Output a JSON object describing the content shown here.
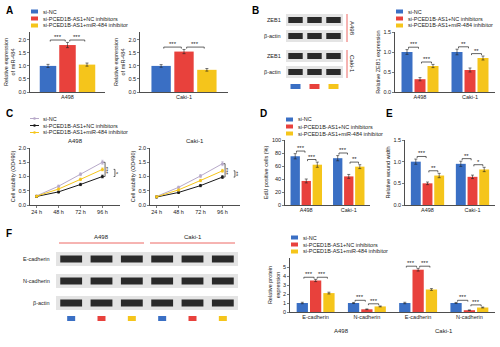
{
  "chart_data": [
    {
      "panel": "A",
      "type": "bar",
      "y_label": "Relative expression\nof miR-484",
      "categories": [
        "A498"
      ],
      "series": [
        {
          "name": "si-NC",
          "color": "#3a6fc4",
          "values": [
            1.0
          ],
          "errors": [
            0.06
          ]
        },
        {
          "name": "si-PCED1B-AS1+NC inhibitors",
          "color": "#e8413c",
          "values": [
            1.8
          ],
          "errors": [
            0.1
          ]
        },
        {
          "name": "si-PCED1B-AS1+miR-484 inhibitor",
          "color": "#f5c51b",
          "values": [
            1.05
          ],
          "errors": [
            0.06
          ]
        }
      ],
      "ylim": [
        0,
        2.3
      ],
      "yticks": [
        {
          "value": 0,
          "label": "0.0"
        },
        0.5,
        {
          "value": 1,
          "label": "1.0"
        },
        1.5,
        {
          "value": 2,
          "label": "2.0"
        }
      ],
      "legend": "top left",
      "significance": [
        {
          "category": "A498",
          "between": [
            "si-NC",
            "si-PCED1B-AS1+NC inhibitors"
          ],
          "text": "***"
        },
        {
          "category": "A498",
          "between": [
            "si-PCED1B-AS1+NC inhibitors",
            "si-PCED1B-AS1+miR-484 inhibitor"
          ],
          "text": "***"
        }
      ]
    },
    {
      "type": "bar",
      "y_label": "Relative expression\nof miR-484",
      "categories": [
        "Caki-1"
      ],
      "series": [
        {
          "name": "si-NC",
          "color": "#3a6fc4",
          "values": [
            1.0
          ],
          "errors": [
            0.05
          ]
        },
        {
          "name": "si-PCED1B-AS1+NC inhibitors",
          "color": "#e8413c",
          "values": [
            1.55
          ],
          "errors": [
            0.08
          ]
        },
        {
          "name": "si-PCED1B-AS1+miR-484 inhibitor",
          "color": "#f5c51b",
          "values": [
            0.85
          ],
          "errors": [
            0.05
          ]
        }
      ],
      "ylim": [
        0,
        2.3
      ],
      "yticks": [
        {
          "value": 0,
          "label": "0.0"
        },
        0.5,
        {
          "value": 1,
          "label": "1.0"
        },
        1.5,
        {
          "value": 2,
          "label": "2.0"
        }
      ],
      "significance": [
        {
          "category": "Caki-1",
          "between": [
            "si-NC",
            "si-PCED1B-AS1+NC inhibitors"
          ],
          "text": "***"
        },
        {
          "category": "Caki-1",
          "between": [
            "si-PCED1B-AS1+NC inhibitors",
            "si-PCED1B-AS1+miR-484 inhibitor"
          ],
          "text": "***"
        }
      ]
    },
    {
      "type": "bar",
      "y_label": "Relative ZEB1 expression",
      "categories": [
        "A498",
        "Caki-1"
      ],
      "series": [
        {
          "name": "si-NC",
          "color": "#3a6fc4",
          "values": [
            1.0,
            1.0
          ],
          "errors": [
            0.06,
            0.07
          ]
        },
        {
          "name": "si-PCED1B-AS1+NC inhibitors",
          "color": "#e8413c",
          "values": [
            0.32,
            0.55
          ],
          "errors": [
            0.04,
            0.05
          ]
        },
        {
          "name": "si-PCED1B-AS1+miR-484 inhibitor",
          "color": "#f5c51b",
          "values": [
            0.65,
            0.85
          ],
          "errors": [
            0.04,
            0.05
          ]
        }
      ],
      "ylim": [
        0,
        1.5
      ],
      "yticks": [
        {
          "value": 0,
          "label": "0.0"
        },
        0.5,
        {
          "value": 1,
          "label": "1.0"
        },
        1.5
      ],
      "legend": "top right",
      "significance": [
        {
          "category": "A498",
          "between": [
            "si-NC",
            "si-PCED1B-AS1+NC inhibitors"
          ],
          "text": "***"
        },
        {
          "category": "A498",
          "between": [
            "si-PCED1B-AS1+NC inhibitors",
            "si-PCED1B-AS1+miR-484 inhibitor"
          ],
          "text": "***"
        },
        {
          "category": "Caki-1",
          "between": [
            "si-NC",
            "si-PCED1B-AS1+NC inhibitors"
          ],
          "text": "**"
        },
        {
          "category": "Caki-1",
          "between": [
            "si-PCED1B-AS1+NC inhibitors",
            "si-PCED1B-AS1+miR-484 inhibitor"
          ],
          "text": "**"
        }
      ]
    },
    {
      "panel": "C",
      "type": "line",
      "title": "A498",
      "y_label": "Cell viability (OD490)",
      "categories": [
        "24 h",
        "48 h",
        "72 h",
        "96 h"
      ],
      "marker": "circle",
      "series": [
        {
          "name": "si-NC",
          "color": "#b7a9c9",
          "values": [
            0.32,
            0.66,
            1.08,
            1.5
          ],
          "errors": [
            0.03,
            0.04,
            0.05,
            0.07
          ]
        },
        {
          "name": "si-PCED1B-AS1+NC inhibitors",
          "color": "#1a1a1a",
          "values": [
            0.3,
            0.46,
            0.72,
            1.0
          ],
          "errors": [
            0.03,
            0.03,
            0.04,
            0.05
          ]
        },
        {
          "name": "si-PCED1B-AS1+miR-484 inhibitor",
          "color": "#f5c51b",
          "values": [
            0.31,
            0.56,
            0.9,
            1.25
          ],
          "errors": [
            0.03,
            0.03,
            0.04,
            0.05
          ]
        }
      ],
      "ylim": [
        0,
        2
      ],
      "yticks": [
        {
          "value": 0,
          "label": "0.0"
        },
        0.5,
        {
          "value": 1,
          "label": "1.0"
        },
        1.5,
        {
          "value": 2,
          "label": "2.0"
        }
      ],
      "legend": "top left",
      "significance": [
        {
          "category": "96 h",
          "between": [
            "si-NC",
            "si-PCED1B-AS1+NC inhibitors"
          ],
          "text": "***"
        },
        {
          "category": "96 h",
          "between": [
            "si-PCED1B-AS1+NC inhibitors",
            "si-PCED1B-AS1+miR-484 inhibitor"
          ],
          "text": "*"
        }
      ]
    },
    {
      "type": "line",
      "title": "Caki-1",
      "y_label": "Cell viability (OD490)",
      "categories": [
        "24 h",
        "48 h",
        "72 h",
        "96 h"
      ],
      "marker": "circle",
      "series": [
        {
          "name": "si-NC",
          "color": "#b7a9c9",
          "values": [
            0.3,
            0.62,
            1.02,
            1.45
          ],
          "errors": [
            0.03,
            0.04,
            0.05,
            0.07
          ]
        },
        {
          "name": "si-PCED1B-AS1+NC inhibitors",
          "color": "#1a1a1a",
          "values": [
            0.28,
            0.44,
            0.68,
            0.98
          ],
          "errors": [
            0.03,
            0.03,
            0.04,
            0.05
          ]
        },
        {
          "name": "si-PCED1B-AS1+miR-484 inhibitor",
          "color": "#f5c51b",
          "values": [
            0.29,
            0.53,
            0.86,
            1.2
          ],
          "errors": [
            0.03,
            0.03,
            0.04,
            0.05
          ]
        }
      ],
      "ylim": [
        0,
        2
      ],
      "yticks": [
        {
          "value": 0,
          "label": "0.0"
        },
        0.5,
        {
          "value": 1,
          "label": "1.0"
        },
        1.5,
        {
          "value": 2,
          "label": "2.0"
        }
      ],
      "significance": [
        {
          "category": "96 h",
          "between": [
            "si-NC",
            "si-PCED1B-AS1+NC inhibitors"
          ],
          "text": "***"
        },
        {
          "category": "96 h",
          "between": [
            "si-PCED1B-AS1+NC inhibitors",
            "si-PCED1B-AS1+miR-484 inhibitor"
          ],
          "text": "**"
        }
      ]
    },
    {
      "panel": "D",
      "type": "bar",
      "y_label": "EdU positive cells (%)",
      "categories": [
        "A498",
        "Caki-1"
      ],
      "series": [
        {
          "name": "si-NC",
          "color": "#3a6fc4",
          "values": [
            75,
            72
          ],
          "errors": [
            4,
            4
          ]
        },
        {
          "name": "si-PCED1B-AS1+NC inhibitors",
          "color": "#e8413c",
          "values": [
            37,
            44
          ],
          "errors": [
            3,
            3
          ]
        },
        {
          "name": "si-PCED1B-AS1+miR-484 inhibitor",
          "color": "#f5c51b",
          "values": [
            62,
            59
          ],
          "errors": [
            4,
            3
          ]
        }
      ],
      "ylim": [
        0,
        100
      ],
      "yticks": [
        0,
        20,
        40,
        60,
        80,
        100
      ],
      "legend": "top left",
      "significance": [
        {
          "category": "A498",
          "between": [
            "si-NC",
            "si-PCED1B-AS1+NC inhibitors"
          ],
          "text": "***"
        },
        {
          "category": "A498",
          "between": [
            "si-PCED1B-AS1+NC inhibitors",
            "si-PCED1B-AS1+miR-484 inhibitor"
          ],
          "text": "***"
        },
        {
          "category": "Caki-1",
          "between": [
            "si-NC",
            "si-PCED1B-AS1+NC inhibitors"
          ],
          "text": "***"
        },
        {
          "category": "Caki-1",
          "between": [
            "si-PCED1B-AS1+NC inhibitors",
            "si-PCED1B-AS1+miR-484 inhibitor"
          ],
          "text": "**"
        }
      ]
    },
    {
      "panel": "E",
      "type": "bar",
      "y_label": "Relative wound width",
      "categories": [
        "A498",
        "Caki-1"
      ],
      "series": [
        {
          "name": "si-NC",
          "color": "#3a6fc4",
          "values": [
            1.0,
            0.95
          ],
          "errors": [
            0.06,
            0.06
          ]
        },
        {
          "name": "si-PCED1B-AS1+NC inhibitors",
          "color": "#e8413c",
          "values": [
            0.5,
            0.65
          ],
          "errors": [
            0.03,
            0.04
          ]
        },
        {
          "name": "si-PCED1B-AS1+miR-484 inhibitor",
          "color": "#f5c51b",
          "values": [
            0.68,
            0.82
          ],
          "errors": [
            0.05,
            0.05
          ]
        }
      ],
      "ylim": [
        0,
        1.5
      ],
      "yticks": [
        {
          "value": 0,
          "label": "0.0"
        },
        0.5,
        {
          "value": 1,
          "label": "1.0"
        },
        1.5
      ],
      "significance": [
        {
          "category": "A498",
          "between": [
            "si-NC",
            "si-PCED1B-AS1+NC inhibitors"
          ],
          "text": "***"
        },
        {
          "category": "A498",
          "between": [
            "si-PCED1B-AS1+NC inhibitors",
            "si-PCED1B-AS1+miR-484 inhibitor"
          ],
          "text": "**"
        },
        {
          "category": "Caki-1",
          "between": [
            "si-NC",
            "si-PCED1B-AS1+NC inhibitors"
          ],
          "text": "**"
        },
        {
          "category": "Caki-1",
          "between": [
            "si-PCED1B-AS1+NC inhibitors",
            "si-PCED1B-AS1+miR-484 inhibitor"
          ],
          "text": "*"
        }
      ]
    },
    {
      "type": "bar",
      "y_label": "Relative protein\nexpression",
      "categories": [
        "E-cadherin",
        "N-cadherin",
        "E-cadherin",
        "N-cadherin"
      ],
      "groups": [
        "A498",
        "A498",
        "Caki-1",
        "Caki-1"
      ],
      "series": [
        {
          "name": "si-NC",
          "color": "#3a6fc4",
          "values": [
            1.0,
            1.0,
            1.0,
            1.0
          ],
          "errors": [
            0.08,
            0.06,
            0.08,
            0.06
          ]
        },
        {
          "name": "si-PCED1B-AS1+NC inhibitors",
          "color": "#e8413c",
          "values": [
            3.5,
            0.3,
            4.7,
            0.2
          ],
          "errors": [
            0.12,
            0.04,
            0.15,
            0.03
          ]
        },
        {
          "name": "si-PCED1B-AS1+miR-484 inhibitor",
          "color": "#f5c51b",
          "values": [
            2.1,
            0.62,
            2.5,
            0.5
          ],
          "errors": [
            0.1,
            0.05,
            0.1,
            0.05
          ]
        }
      ],
      "ylim": [
        0,
        6
      ],
      "yticks": [
        0,
        1,
        2,
        3,
        4,
        5
      ],
      "legend": "top left",
      "significance": [
        {
          "group": "A498",
          "category": "E-cadherin",
          "between": [
            "si-NC",
            "si-PCED1B-AS1+NC inhibitors"
          ],
          "text": "***"
        },
        {
          "group": "A498",
          "category": "E-cadherin",
          "between": [
            "si-PCED1B-AS1+NC inhibitors",
            "si-PCED1B-AS1+miR-484 inhibitor"
          ],
          "text": "***"
        },
        {
          "group": "A498",
          "category": "N-cadherin",
          "between": [
            "si-NC",
            "si-PCED1B-AS1+NC inhibitors"
          ],
          "text": "***"
        },
        {
          "group": "A498",
          "category": "N-cadherin",
          "between": [
            "si-PCED1B-AS1+NC inhibitors",
            "si-PCED1B-AS1+miR-484 inhibitor"
          ],
          "text": "***"
        },
        {
          "group": "Caki-1",
          "category": "E-cadherin",
          "between": [
            "si-NC",
            "si-PCED1B-AS1+NC inhibitors"
          ],
          "text": "***"
        },
        {
          "group": "Caki-1",
          "category": "E-cadherin",
          "between": [
            "si-PCED1B-AS1+NC inhibitors",
            "si-PCED1B-AS1+miR-484 inhibitor"
          ],
          "text": "***"
        },
        {
          "group": "Caki-1",
          "category": "N-cadherin",
          "between": [
            "si-NC",
            "si-PCED1B-AS1+NC inhibitors"
          ],
          "text": "***"
        },
        {
          "group": "Caki-1",
          "category": "N-cadherin",
          "between": [
            "si-PCED1B-AS1+NC inhibitors",
            "si-PCED1B-AS1+miR-484 inhibitor"
          ],
          "text": "***"
        }
      ]
    }
  ],
  "blots": [
    {
      "panel": "B",
      "groups": [
        {
          "label": "A498",
          "rows": [
            "ZEB1",
            "β-actin"
          ]
        },
        {
          "label": "Caki-1",
          "rows": [
            "ZEB1",
            "β-actin"
          ]
        }
      ],
      "lane_colors": [
        "#3a6fc4",
        "#e8413c",
        "#f5c51b"
      ]
    },
    {
      "panel": "F",
      "groups": [
        "A498",
        "Caki-1"
      ],
      "rows": [
        "E-cadherin",
        "N-cadherin",
        "β-actin"
      ],
      "lane_colors": [
        "#3a6fc4",
        "#e8413c",
        "#f5c51b"
      ]
    }
  ]
}
